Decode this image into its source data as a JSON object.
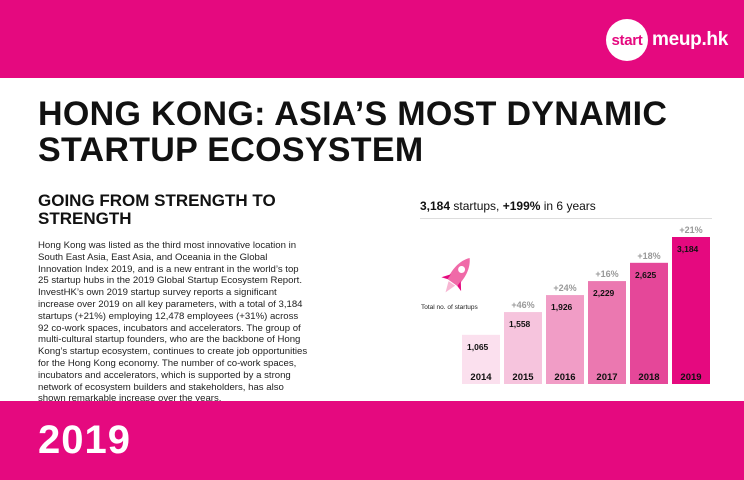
{
  "brand": {
    "logo_circle": "start",
    "logo_rest": "meup.hk",
    "accent_color": "#e5097f"
  },
  "headline": "HONG KONG: ASIA’S MOST DYNAMIC STARTUP ECOSYSTEM",
  "subhead": "GOING FROM STRENGTH TO STRENGTH",
  "body": "Hong Kong was listed as the third most innovative location in South East Asia, East Asia, and Oceania in the Global Innovation Index 2019, and is a new entrant in the world’s top 25 startup hubs in the 2019 Global Startup Ecosystem Report. InvestHK’s own 2019 startup survey reports a significant increase over 2019 on all key parameters, with a total of 3,184 startups (+21%) employing 12,478 employees (+31%) across 92 co-work spaces, incubators and accelerators. The group of multi-cultural startup founders, who are the backbone of Hong Kong’s startup ecosystem, continues to create job opportunities for the Hong Kong economy. The number of co-work spaces, incubators and accelerators, which is supported by a strong network of ecosystem builders and stakeholders, has also shown remarkable increase over the years.",
  "footer_year": "2019",
  "chart_summary": {
    "total": "3,184",
    "mid": " startups, ",
    "growth": "+199%",
    "tail": " in 6 years"
  },
  "rocket_icon": "rocket-icon",
  "chart_data": {
    "type": "bar",
    "ylabel": "Total no. of startups",
    "categories": [
      "2014",
      "2015",
      "2016",
      "2017",
      "2018",
      "2019"
    ],
    "values": [
      1065,
      1558,
      1926,
      2229,
      2625,
      3184
    ],
    "value_labels": [
      "1,065",
      "1,558",
      "1,926",
      "2,229",
      "2,625",
      "3,184"
    ],
    "growth_labels": [
      "",
      "+46%",
      "+24%",
      "+16%",
      "+18%",
      "+21%"
    ],
    "colors": [
      "#fbe0ee",
      "#f6c4dd",
      "#f19dc6",
      "#eb78b0",
      "#e54799",
      "#e5097f"
    ],
    "growth_color": "#999999",
    "ylim": [
      0,
      3184
    ]
  }
}
